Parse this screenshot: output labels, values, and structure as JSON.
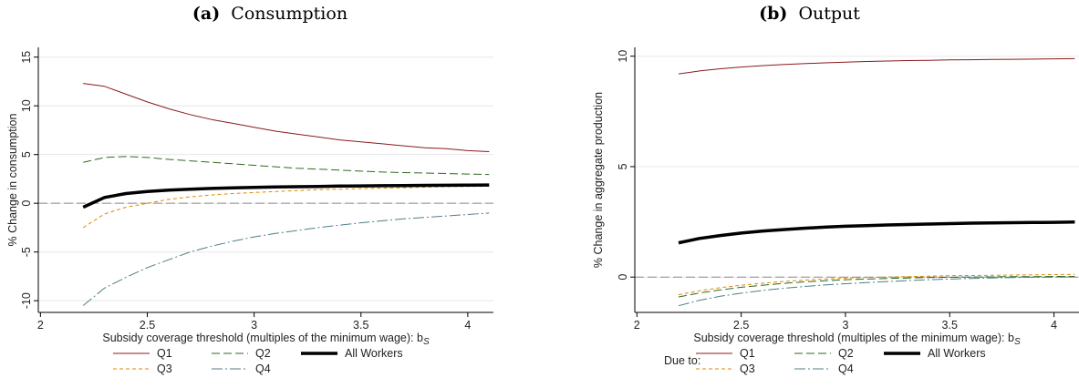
{
  "chart_data": [
    {
      "type": "line",
      "panel_letter": "(a)",
      "title": "Consumption",
      "xlabel": "Subsidy coverage threshold (multiples of the minimum wage): b",
      "xlabel_sub": "S",
      "ylabel": "% Change in consumption",
      "xlim": [
        1.99,
        4.12
      ],
      "ylim": [
        -11.2,
        16.0
      ],
      "xticks": [
        "2",
        "2.5",
        "3",
        "3.5",
        "4"
      ],
      "yticks": [
        "-10",
        "-5",
        "0",
        "5",
        "10",
        "15"
      ],
      "ytick_values": [
        -10,
        -5,
        0,
        5,
        10,
        15
      ],
      "grid": "horizontal",
      "reference_line": 0,
      "legend_placement": "bottom",
      "x": [
        2.2,
        2.3,
        2.4,
        2.5,
        2.6,
        2.7,
        2.8,
        2.9,
        3.0,
        3.1,
        3.2,
        3.3,
        3.4,
        3.5,
        3.6,
        3.7,
        3.8,
        3.9,
        4.0,
        4.1
      ],
      "series": [
        {
          "name": "Q1",
          "color": "#8b1a1a",
          "dash": "",
          "width": 1,
          "values": [
            12.3,
            12.0,
            11.2,
            10.4,
            9.7,
            9.1,
            8.6,
            8.2,
            7.8,
            7.4,
            7.1,
            6.8,
            6.5,
            6.3,
            6.1,
            5.9,
            5.7,
            5.6,
            5.4,
            5.3
          ]
        },
        {
          "name": "Q2",
          "color": "#2e6b1e",
          "dash": "9,4",
          "width": 1,
          "values": [
            4.2,
            4.7,
            4.8,
            4.7,
            4.5,
            4.35,
            4.2,
            4.05,
            3.9,
            3.75,
            3.6,
            3.5,
            3.4,
            3.3,
            3.2,
            3.15,
            3.1,
            3.05,
            3.0,
            2.95
          ]
        },
        {
          "name": "Q3",
          "color": "#e08a00",
          "dash": "4,3",
          "width": 1,
          "values": [
            -2.5,
            -1.1,
            -0.4,
            0.0,
            0.4,
            0.65,
            0.85,
            1.0,
            1.1,
            1.2,
            1.3,
            1.4,
            1.45,
            1.5,
            1.55,
            1.6,
            1.65,
            1.7,
            1.72,
            1.75
          ]
        },
        {
          "name": "Q4",
          "color": "#4f7f86",
          "dash": "12,3,2,3",
          "width": 1,
          "values": [
            -10.5,
            -8.7,
            -7.6,
            -6.6,
            -5.8,
            -5.0,
            -4.4,
            -3.9,
            -3.45,
            -3.1,
            -2.8,
            -2.5,
            -2.25,
            -2.0,
            -1.8,
            -1.6,
            -1.45,
            -1.3,
            -1.15,
            -1.0
          ]
        },
        {
          "name": "All Workers",
          "color": "#000000",
          "dash": "",
          "width": 3.5,
          "values": [
            -0.4,
            0.6,
            1.0,
            1.2,
            1.35,
            1.45,
            1.52,
            1.58,
            1.63,
            1.67,
            1.7,
            1.73,
            1.76,
            1.78,
            1.8,
            1.82,
            1.84,
            1.85,
            1.87,
            1.88
          ]
        }
      ],
      "legend_prefix": ""
    },
    {
      "type": "line",
      "panel_letter": "(b)",
      "title": "Output",
      "xlabel": "Subsidy coverage threshold (multiples of the minimum wage): b",
      "xlabel_sub": "S",
      "ylabel": "% Change in aggregate production",
      "xlim": [
        1.99,
        4.12
      ],
      "ylim": [
        -1.6,
        10.4
      ],
      "xticks": [
        "2",
        "2.5",
        "3",
        "3.5",
        "4"
      ],
      "yticks": [
        "0",
        "5",
        "10"
      ],
      "ytick_values": [
        0,
        5,
        10
      ],
      "grid": "horizontal",
      "reference_line": 0,
      "legend_placement": "bottom",
      "x": [
        2.2,
        2.3,
        2.4,
        2.5,
        2.6,
        2.7,
        2.8,
        2.9,
        3.0,
        3.1,
        3.2,
        3.3,
        3.4,
        3.5,
        3.6,
        3.7,
        3.8,
        3.9,
        4.0,
        4.1
      ],
      "series": [
        {
          "name": "Q1",
          "color": "#8b1a1a",
          "dash": "",
          "width": 1,
          "values": [
            9.2,
            9.33,
            9.43,
            9.51,
            9.57,
            9.62,
            9.66,
            9.7,
            9.73,
            9.76,
            9.78,
            9.8,
            9.81,
            9.83,
            9.84,
            9.85,
            9.86,
            9.87,
            9.88,
            9.89
          ]
        },
        {
          "name": "Q2",
          "color": "#2e6b1e",
          "dash": "9,4",
          "width": 1,
          "values": [
            -0.9,
            -0.72,
            -0.58,
            -0.46,
            -0.37,
            -0.29,
            -0.22,
            -0.17,
            -0.12,
            -0.09,
            -0.06,
            -0.04,
            -0.02,
            -0.01,
            0.0,
            0.01,
            0.02,
            0.02,
            0.03,
            0.03
          ]
        },
        {
          "name": "Q3",
          "color": "#e08a00",
          "dash": "4,3",
          "width": 1,
          "values": [
            -0.8,
            -0.62,
            -0.48,
            -0.37,
            -0.28,
            -0.2,
            -0.14,
            -0.09,
            -0.05,
            -0.02,
            0.0,
            0.02,
            0.04,
            0.06,
            0.07,
            0.08,
            0.09,
            0.1,
            0.11,
            0.12
          ]
        },
        {
          "name": "Q4",
          "color": "#4f7f86",
          "dash": "12,3,2,3",
          "width": 1,
          "values": [
            -1.3,
            -1.05,
            -0.87,
            -0.73,
            -0.61,
            -0.51,
            -0.43,
            -0.36,
            -0.3,
            -0.25,
            -0.2,
            -0.16,
            -0.12,
            -0.09,
            -0.06,
            -0.04,
            -0.02,
            -0.01,
            0.0,
            0.01
          ]
        },
        {
          "name": "All Workers",
          "color": "#000000",
          "dash": "",
          "width": 3.5,
          "values": [
            1.55,
            1.75,
            1.88,
            1.99,
            2.08,
            2.15,
            2.21,
            2.26,
            2.3,
            2.33,
            2.36,
            2.38,
            2.4,
            2.42,
            2.44,
            2.45,
            2.46,
            2.47,
            2.48,
            2.49
          ]
        }
      ],
      "legend_prefix": "Due to:"
    }
  ]
}
